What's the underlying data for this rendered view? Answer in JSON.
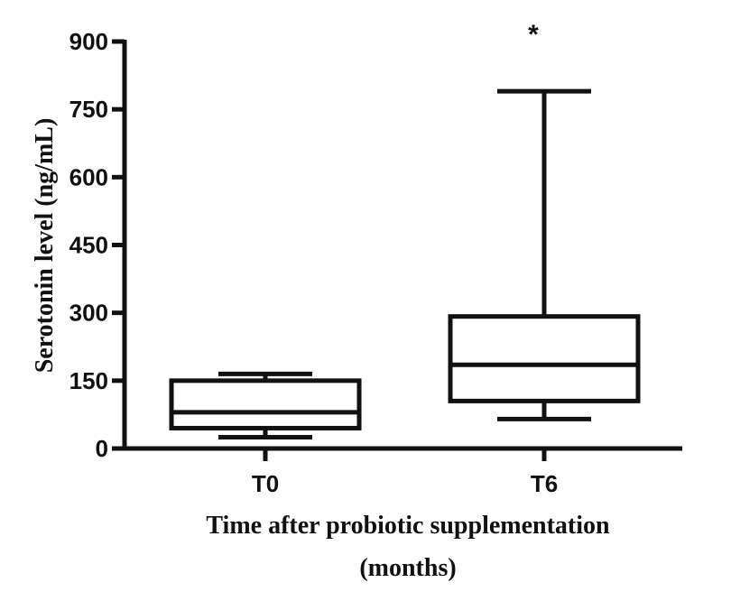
{
  "chart_data": {
    "type": "boxplot",
    "ylabel": "Serotonin level (ng/mL)",
    "xlabel_lines": [
      "Time after probiotic supplementation",
      "(months)"
    ],
    "ylim": [
      0,
      900
    ],
    "yticks": [
      0,
      150,
      300,
      450,
      600,
      750,
      900
    ],
    "categories": [
      "T0",
      "T6"
    ],
    "boxes": [
      {
        "category": "T0",
        "min": 25,
        "q1": 45,
        "median": 80,
        "q3": 150,
        "max": 165,
        "annotation": ""
      },
      {
        "category": "T6",
        "min": 65,
        "q1": 105,
        "median": 185,
        "q3": 292,
        "max": 790,
        "annotation": "*"
      }
    ],
    "grid": false,
    "legend": "none"
  }
}
